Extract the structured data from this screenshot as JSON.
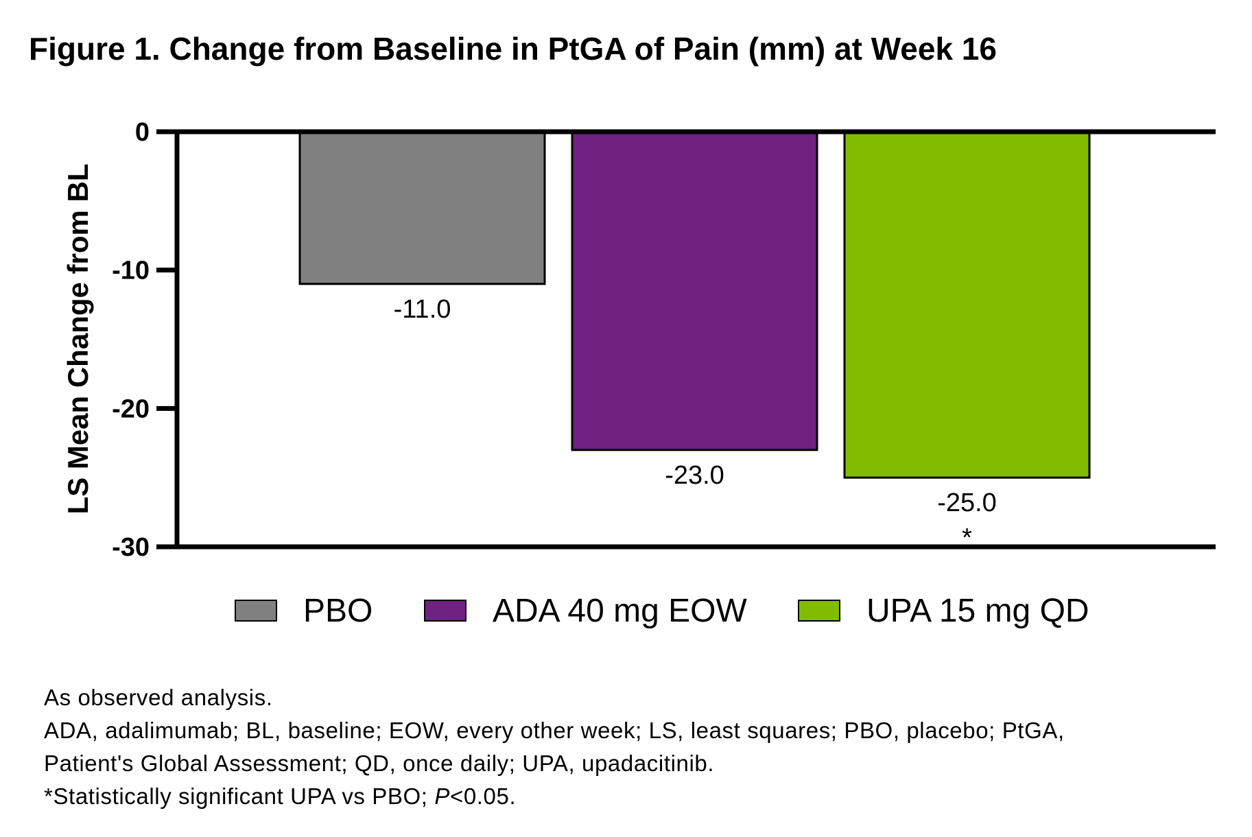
{
  "figure": {
    "title": "Figure 1. Change from Baseline in PtGA of Pain (mm) at Week 16"
  },
  "chart_data": {
    "type": "bar",
    "title": "Figure 1. Change from Baseline in PtGA of Pain (mm) at Week 16",
    "xlabel": "",
    "ylabel": "LS Mean Change from BL",
    "ylim": [
      -30,
      0
    ],
    "yticks": [
      0,
      -10,
      -20,
      -30
    ],
    "ytick_labels": [
      "0",
      "-10",
      "-20",
      "-30"
    ],
    "grid": false,
    "legend_position": "bottom",
    "categories": [
      "PBO",
      "ADA 40 mg EOW",
      "UPA 15 mg QD"
    ],
    "values": [
      -11.0,
      -23.0,
      -25.0
    ],
    "value_labels": [
      "-11.0",
      "-23.0",
      "-25.0"
    ],
    "annotations": [
      "",
      "",
      "*"
    ],
    "colors": [
      "#808080",
      "#6f2282",
      "#82bc00"
    ]
  },
  "legend": {
    "items": [
      {
        "label": "PBO",
        "color": "#808080"
      },
      {
        "label": "ADA 40 mg EOW",
        "color": "#6f2282"
      },
      {
        "label": "UPA 15 mg QD",
        "color": "#82bc00"
      }
    ]
  },
  "footnotes": {
    "line1": "As observed analysis.",
    "line2": "ADA, adalimumab; BL, baseline; EOW, every other week; LS, least squares; PBO, placebo; PtGA,",
    "line3": "Patient's Global Assessment; QD, once daily; UPA, upadacitinib.",
    "line4_prefix": "*Statistically significant UPA vs PBO; ",
    "line4_italic": "P",
    "line4_suffix": "<0.05."
  }
}
